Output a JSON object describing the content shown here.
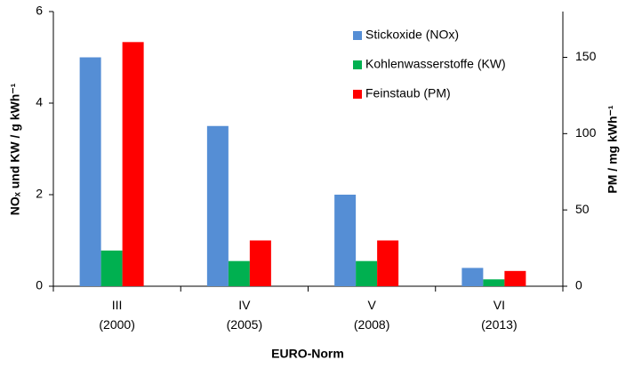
{
  "chart_data": {
    "type": "bar",
    "categories": [
      "III\n(2000)",
      "IV\n(2005)",
      "V\n(2008)",
      "VI\n(2013)"
    ],
    "series": [
      {
        "name": "Stickoxide (NOx)",
        "color": "#558ed5",
        "values": [
          5,
          3.5,
          2,
          0.4
        ]
      },
      {
        "name": "Kohlenwasserstoffe (KW)",
        "color": "#00b050",
        "values": [
          0.78,
          0.55,
          0.55,
          0.15
        ]
      },
      {
        "name": "Feinstaub (PM)",
        "color": "#ff0000",
        "values": [
          160,
          30,
          30,
          10
        ],
        "axis": "y2"
      }
    ],
    "xlabel": "EURO-Norm",
    "ylabel": "NOₓ und KW / g kWh⁻¹",
    "y2label": "PM / mg kWh⁻¹",
    "ylim": [
      0,
      6
    ],
    "yticks": [
      0,
      2,
      4,
      6
    ],
    "y2lim": [
      0,
      180
    ],
    "y2ticks": [
      0,
      50,
      100,
      150
    ],
    "legend": "upper right"
  }
}
